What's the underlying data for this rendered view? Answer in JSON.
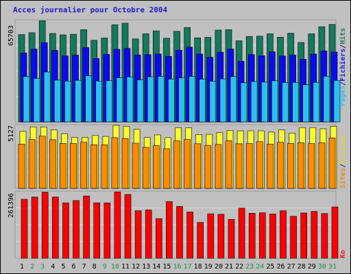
{
  "title": "Acces journalier pour Octobre 2004",
  "chart_data": [
    {
      "type": "bar",
      "title": "Acces journalier pour Octobre 2004",
      "categories": [
        "1",
        "2",
        "3",
        "4",
        "5",
        "6",
        "7",
        "8",
        "9",
        "10",
        "11",
        "12",
        "13",
        "14",
        "15",
        "16",
        "17",
        "18",
        "19",
        "20",
        "21",
        "22",
        "23",
        "24",
        "25",
        "26",
        "27",
        "28",
        "29",
        "30",
        "31"
      ],
      "weekend_days": [
        "2",
        "3",
        "9",
        "10",
        "16",
        "17",
        "23",
        "24",
        "30",
        "31"
      ],
      "ymax_label": "65703",
      "ymax": 65703,
      "right_labels": [
        {
          "text": "Pages",
          "color": "#29c4ee"
        },
        {
          "text": "/",
          "color": "#1c1c8c"
        },
        {
          "text": "Fichiers",
          "color": "#1c1ce8"
        },
        {
          "text": "/",
          "color": "#1c1c8c"
        },
        {
          "text": "Hits",
          "color": "#1e7d5c"
        }
      ],
      "series": [
        {
          "name": "Hits",
          "color": "#137a5c",
          "values": [
            56600,
            57800,
            65600,
            57300,
            56400,
            56800,
            59800,
            52900,
            54400,
            63000,
            64000,
            53800,
            57100,
            59000,
            54200,
            58700,
            61200,
            54500,
            54800,
            59500,
            59800,
            52600,
            55400,
            55600,
            57100,
            54900,
            57500,
            51500,
            57100,
            61700,
            63200
          ]
        },
        {
          "name": "Fichiers",
          "color": "#0b0bf0",
          "values": [
            44700,
            47200,
            51400,
            46400,
            42800,
            43300,
            48200,
            41100,
            43800,
            47100,
            47600,
            43400,
            43600,
            44000,
            42500,
            46500,
            48500,
            44000,
            41900,
            45200,
            47200,
            39300,
            43700,
            42900,
            45400,
            42800,
            43400,
            40600,
            44000,
            46000,
            45300
          ]
        },
        {
          "name": "Pages",
          "color": "#2fbef0",
          "values": [
            29400,
            28200,
            32400,
            27100,
            26500,
            27000,
            29900,
            26500,
            26700,
            28600,
            29200,
            27300,
            29300,
            29500,
            27800,
            28500,
            29500,
            27700,
            26400,
            27900,
            29400,
            25400,
            26200,
            25800,
            26700,
            25500,
            25600,
            24100,
            25700,
            29600,
            26900
          ]
        }
      ]
    },
    {
      "type": "bar",
      "categories": [
        "1",
        "2",
        "3",
        "4",
        "5",
        "6",
        "7",
        "8",
        "9",
        "10",
        "11",
        "12",
        "13",
        "14",
        "15",
        "16",
        "17",
        "18",
        "19",
        "20",
        "21",
        "22",
        "23",
        "24",
        "25",
        "26",
        "27",
        "28",
        "29",
        "30",
        "31"
      ],
      "ymax_label": "5127",
      "ymax": 5127,
      "right_labels": [
        {
          "text": "Sites",
          "color": "#ee8a18"
        },
        {
          "text": "/",
          "color": "#1c1c8c"
        },
        {
          "text": "Visites",
          "color": "#d8d82a"
        }
      ],
      "series": [
        {
          "name": "Visites",
          "color": "#fbfb2c",
          "values": [
            4650,
            5000,
            5000,
            4750,
            4450,
            4150,
            4150,
            4300,
            4230,
            5127,
            5050,
            4800,
            4150,
            4350,
            4130,
            4930,
            4930,
            4380,
            4400,
            4550,
            4720,
            4680,
            4680,
            4680,
            4580,
            4750,
            4500,
            4950,
            4950,
            4850,
            5050
          ]
        },
        {
          "name": "Sites",
          "color": "#ff8c00",
          "values": [
            3600,
            3980,
            4250,
            3960,
            3650,
            3650,
            3750,
            3550,
            3540,
            4130,
            4050,
            3680,
            3340,
            3480,
            3230,
            3860,
            3980,
            3630,
            3500,
            3570,
            3880,
            3630,
            3650,
            3800,
            3600,
            3750,
            3650,
            3700,
            3650,
            3700,
            4100
          ]
        }
      ]
    },
    {
      "type": "bar",
      "categories": [
        "1",
        "2",
        "3",
        "4",
        "5",
        "6",
        "7",
        "8",
        "9",
        "10",
        "11",
        "12",
        "13",
        "14",
        "15",
        "16",
        "17",
        "18",
        "19",
        "20",
        "21",
        "22",
        "23",
        "24",
        "25",
        "26",
        "27",
        "28",
        "29",
        "30",
        "31"
      ],
      "ymax_label": "261396",
      "ymax": 261396,
      "right_labels": [
        {
          "text": "Ko",
          "color": "#e01818"
        }
      ],
      "series": [
        {
          "name": "Ko",
          "color": "#ff0000",
          "values": [
            232000,
            241000,
            260000,
            241000,
            218000,
            227000,
            245000,
            218000,
            218000,
            261000,
            251000,
            187000,
            190000,
            156000,
            223000,
            204000,
            182000,
            141000,
            175000,
            173000,
            153000,
            197000,
            177000,
            179000,
            174000,
            187000,
            165000,
            178000,
            184000,
            176000,
            202000
          ]
        }
      ]
    }
  ]
}
